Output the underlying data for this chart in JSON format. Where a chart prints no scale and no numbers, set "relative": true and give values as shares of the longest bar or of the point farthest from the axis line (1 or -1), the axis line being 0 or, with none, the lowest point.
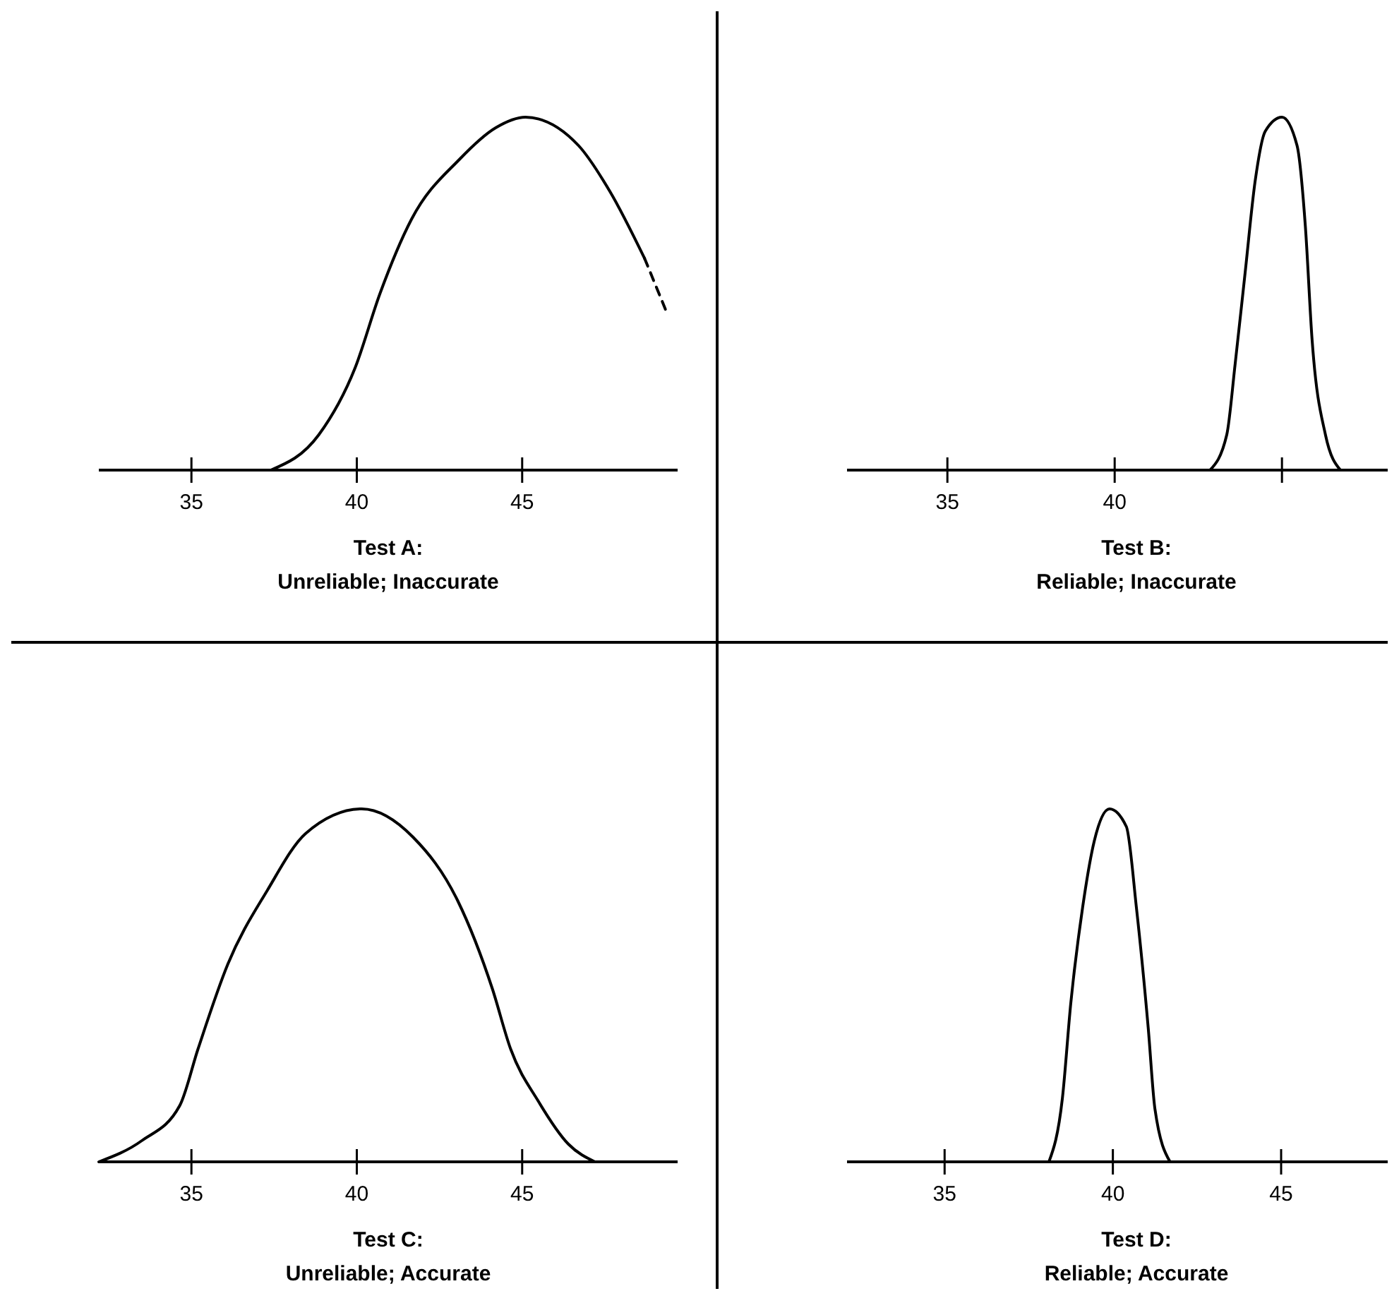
{
  "chart_data": [
    {
      "type": "line",
      "title": "Test A:",
      "subtitle": "Unreliable; Inaccurate",
      "relative": true,
      "xlim": [
        32.2,
        49.7
      ],
      "xticks": [
        35,
        40,
        45
      ],
      "series": [
        {
          "color": "#000000",
          "x": [
            37.4,
            38.85,
            39.95,
            40.7,
            41.65,
            43.1,
            44.2,
            45.1,
            46.7,
            47.65,
            48.7
          ],
          "values": [
            0,
            0.1,
            0.29,
            0.5,
            0.71,
            0.88,
            0.97,
            1,
            0.92,
            0.79,
            0.6
          ]
        },
        {
          "color": "#000000",
          "line_style": "dashed",
          "x": [
            48.7,
            49.4
          ],
          "values": [
            0.6,
            0.44
          ]
        }
      ]
    },
    {
      "type": "line",
      "title": "Test B:",
      "subtitle": "Reliable; Inaccurate",
      "relative": true,
      "xlim": [
        32.0,
        49.3
      ],
      "xticks": [
        35,
        40,
        {
          "value": 45,
          "label": null
        }
      ],
      "series": [
        {
          "color": "#000000",
          "x": [
            42.85,
            43.35,
            43.6,
            43.9,
            44.2,
            44.5,
            45,
            45.45,
            45.7,
            45.9,
            46.3,
            46.75
          ],
          "values": [
            0,
            0.1,
            0.3,
            0.56,
            0.82,
            0.96,
            1,
            0.92,
            0.69,
            0.37,
            0.1,
            0
          ]
        }
      ]
    },
    {
      "type": "line",
      "title": "Test C:",
      "subtitle": "Unreliable; Accurate",
      "relative": true,
      "xlim": [
        32.2,
        49.7
      ],
      "xticks": [
        35,
        40,
        45
      ],
      "series": [
        {
          "color": "#000000",
          "x": [
            32.2,
            33.5,
            34.65,
            35.2,
            36.1,
            37.3,
            38.45,
            40.15,
            41.7,
            43.05,
            44.1,
            44.65,
            45.5,
            46.4,
            47.2
          ],
          "values": [
            0,
            0.06,
            0.16,
            0.32,
            0.56,
            0.77,
            0.93,
            1,
            0.92,
            0.74,
            0.49,
            0.32,
            0.17,
            0.05,
            0
          ]
        }
      ]
    },
    {
      "type": "line",
      "title": "Test D:",
      "subtitle": "Reliable; Accurate",
      "relative": true,
      "xlim": [
        32.1,
        49.3
      ],
      "xticks": [
        35,
        40,
        45
      ],
      "series": [
        {
          "color": "#000000",
          "x": [
            38.1,
            38.5,
            38.75,
            39.1,
            39.45,
            39.9,
            40.4,
            40.7,
            41.05,
            41.25,
            41.7
          ],
          "values": [
            0,
            0.18,
            0.45,
            0.72,
            0.91,
            1,
            0.95,
            0.72,
            0.38,
            0.15,
            0
          ]
        }
      ]
    }
  ]
}
